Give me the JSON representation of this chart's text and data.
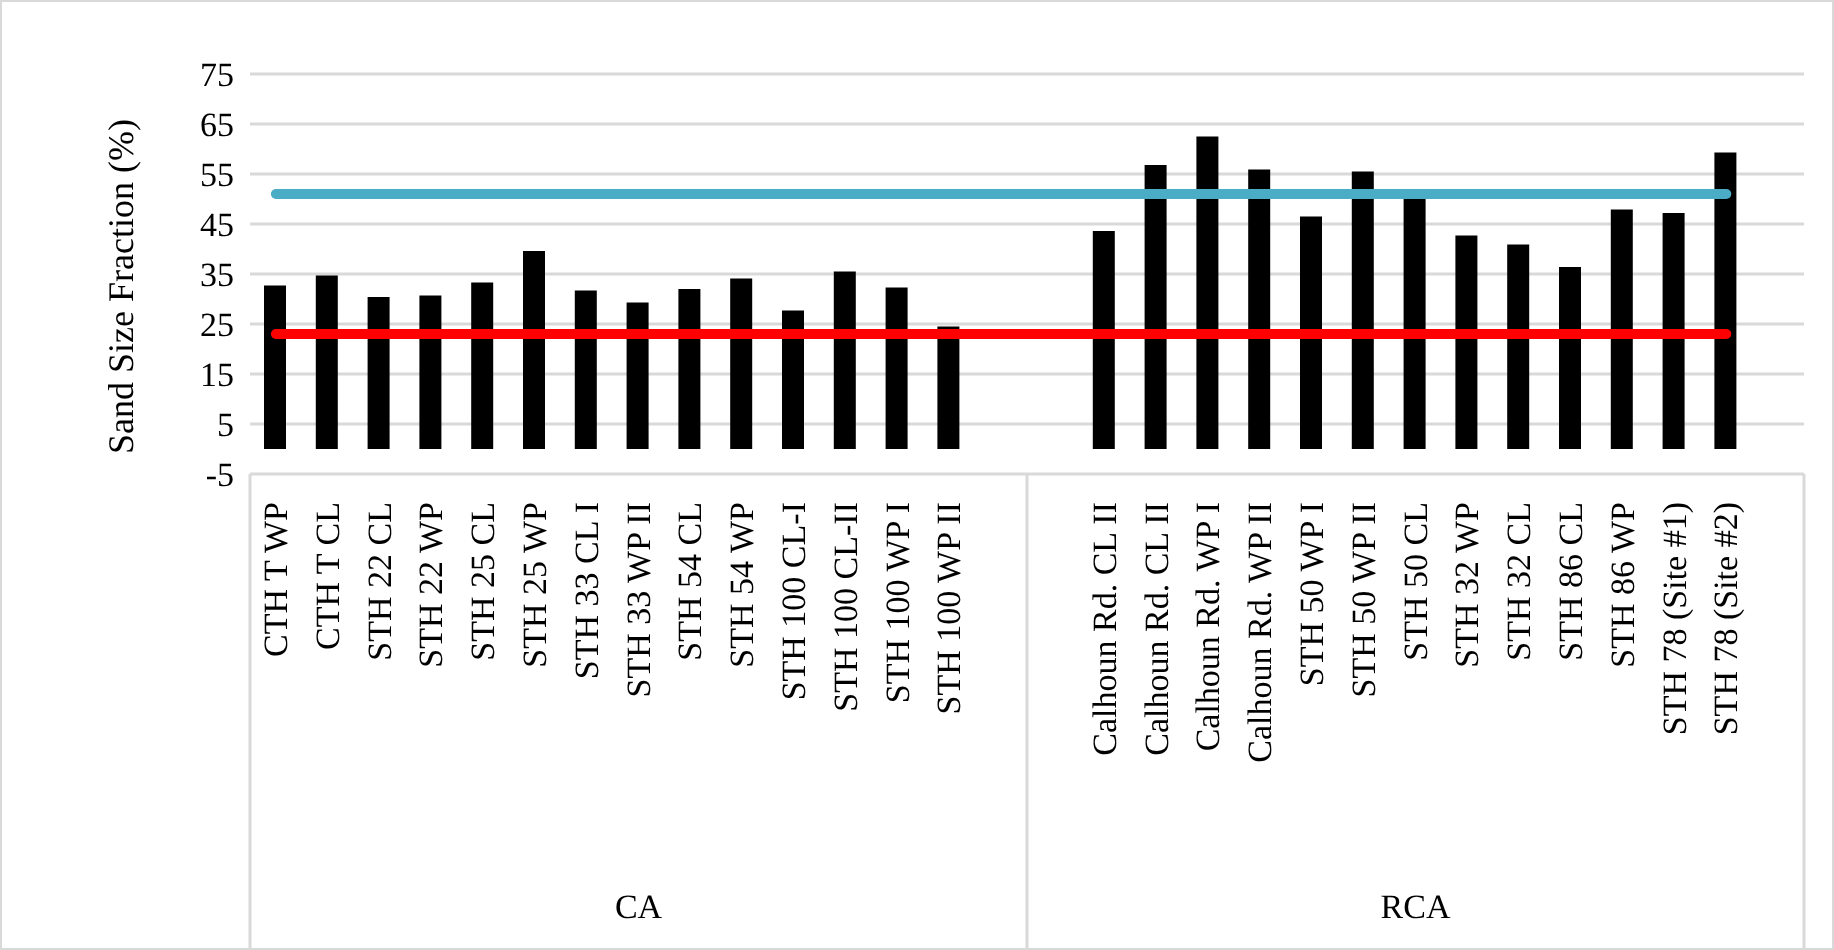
{
  "chart_data": {
    "type": "bar",
    "ylabel": "Sand Size Fraction (%)",
    "categories": [
      "CTH T WP",
      "CTH T CL",
      "STH 22 CL",
      "STH 22 WP",
      "STH 25 CL",
      "STH 25 WP",
      "STH 33 CL I",
      "STH 33 WP II",
      "STH 54 CL",
      "STH 54 WP",
      "STH 100 CL-I",
      "STH 100 CL-II",
      "STH 100 WP I",
      "STH 100 WP II",
      null,
      null,
      "Calhoun Rd. CL II",
      "Calhoun Rd. CL II",
      "Calhoun Rd. WP I",
      "Calhoun Rd. WP II",
      "STH 50 WP I",
      "STH 50 WP II",
      "STH 50 CL",
      "STH 32 WP",
      "STH 32 CL",
      "STH 86 CL",
      "STH 86 WP",
      "STH 78 (Site #1)",
      "STH 78 (Site #2)",
      null
    ],
    "values": [
      32.7,
      34.7,
      30.4,
      30.7,
      33.3,
      39.6,
      31.7,
      29.3,
      32,
      34.1,
      27.7,
      35.5,
      32.3,
      24.5,
      null,
      null,
      43.6,
      56.8,
      62.5,
      55.9,
      46.5,
      55.5,
      50.1,
      42.7,
      40.9,
      36.4,
      47.9,
      47.2,
      59.3,
      null
    ],
    "color": "#000000",
    "ylim": [
      -5,
      75
    ],
    "yticks": [
      -5,
      5,
      15,
      25,
      35,
      45,
      55,
      65,
      75
    ],
    "grid": "y",
    "ref_lines": [
      {
        "axis": "y",
        "value": 51,
        "color": "#4bacc6"
      },
      {
        "axis": "y",
        "value": 23,
        "color": "#ff0000"
      }
    ],
    "annotations": [
      "CA",
      "RCA"
    ]
  }
}
